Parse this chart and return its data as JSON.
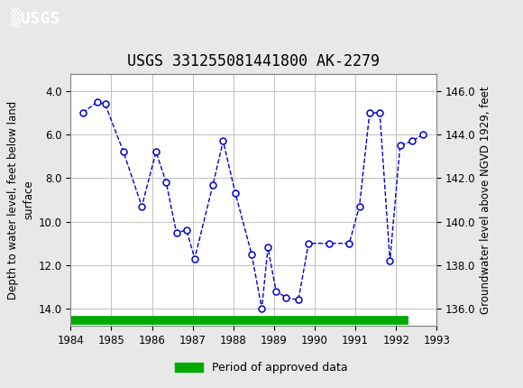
{
  "title": "USGS 331255081441800 AK-2279",
  "ylabel_left": "Depth to water level, feet below land\nsurface",
  "ylabel_right": "Groundwater level above NGVD 1929, feet",
  "xlim": [
    1984,
    1993
  ],
  "ylim_left": [
    14.8,
    3.2
  ],
  "ylim_right": [
    135.2,
    146.8
  ],
  "xticks": [
    1984,
    1985,
    1986,
    1987,
    1988,
    1989,
    1990,
    1991,
    1992,
    1993
  ],
  "yticks_left": [
    4.0,
    6.0,
    8.0,
    10.0,
    12.0,
    14.0
  ],
  "yticks_right": [
    136.0,
    138.0,
    140.0,
    142.0,
    144.0,
    146.0
  ],
  "data_x": [
    1984.3,
    1984.65,
    1984.85,
    1985.3,
    1985.75,
    1986.1,
    1986.35,
    1986.6,
    1986.85,
    1987.05,
    1987.5,
    1987.75,
    1988.05,
    1988.45,
    1988.7,
    1988.85,
    1989.05,
    1989.3,
    1989.6,
    1989.85,
    1990.35,
    1990.85,
    1991.1,
    1991.35,
    1991.6,
    1991.85,
    1992.1,
    1992.4,
    1992.65
  ],
  "data_y": [
    5.0,
    4.5,
    4.6,
    6.8,
    9.3,
    6.8,
    8.2,
    10.5,
    10.4,
    11.7,
    8.3,
    6.3,
    8.7,
    11.5,
    14.0,
    11.2,
    13.2,
    13.5,
    13.6,
    11.0,
    11.0,
    11.0,
    9.3,
    5.0,
    5.0,
    11.8,
    6.5,
    6.3,
    6.0
  ],
  "line_color": "#0000cc",
  "marker_color": "#0000cc",
  "line_style": "--",
  "line_width": 1.0,
  "marker_size": 5,
  "approved_bar_color": "#00aa00",
  "approved_bar_xstart": 1984.0,
  "approved_bar_xend": 1992.3,
  "header_color": "#1a6b3c",
  "background_color": "#e8e8e8",
  "plot_bg_color": "#ffffff",
  "grid_color": "#c0c0c0",
  "font_color": "#000000",
  "title_fontsize": 12,
  "axis_label_fontsize": 8.5,
  "tick_fontsize": 8.5,
  "legend_fontsize": 9
}
